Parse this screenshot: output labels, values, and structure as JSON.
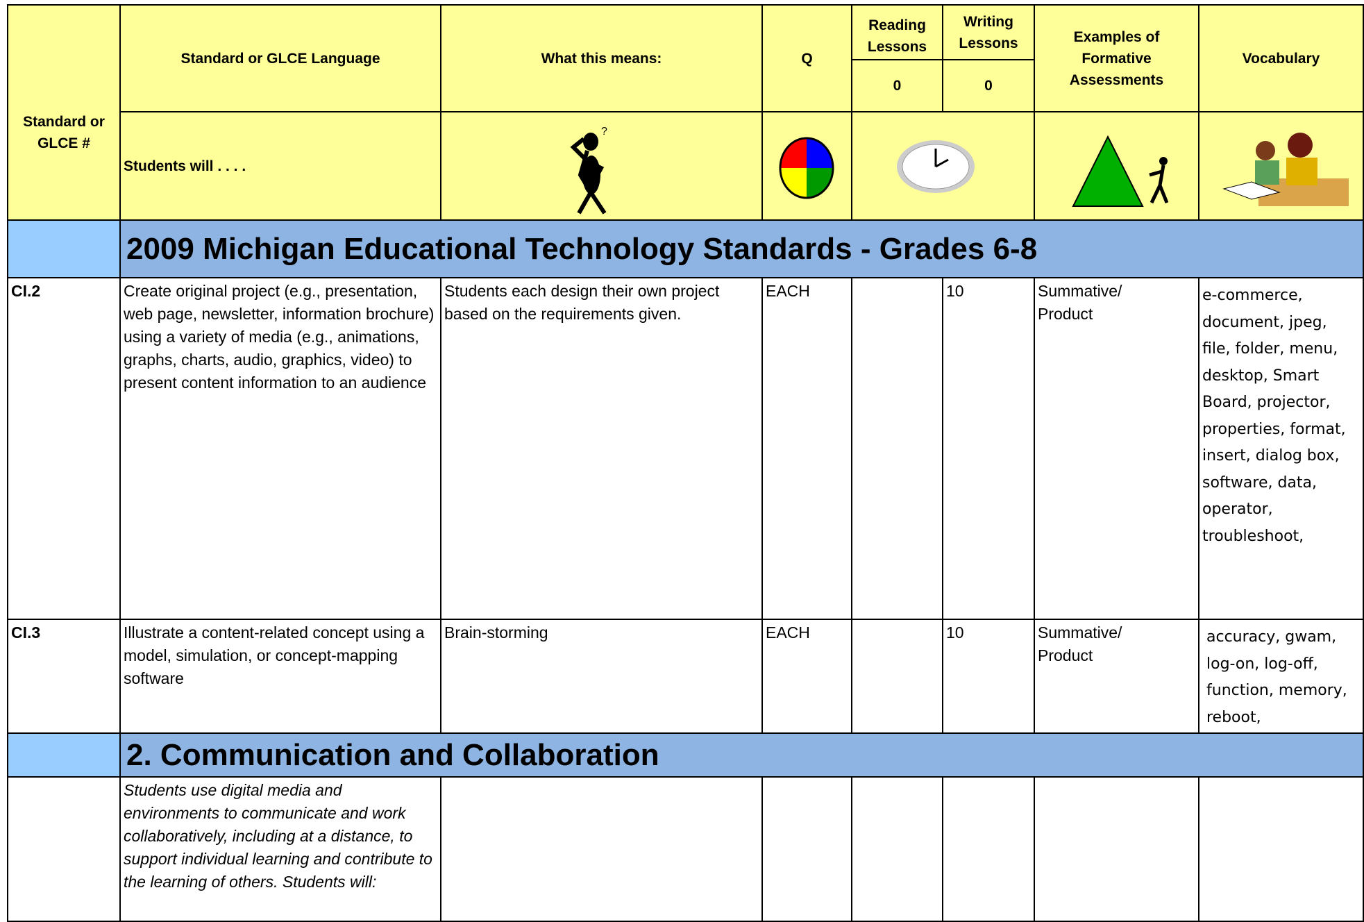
{
  "header": {
    "standard_no": "Standard or GLCE #",
    "standard_language": "Standard or GLCE Language",
    "students_will": "Students will . . . .",
    "what_this_means": "What this means:",
    "q": "Q",
    "reading_lessons": "Reading Lessons",
    "writing_lessons": "Writing Lessons",
    "reading_count": 0,
    "writing_count": 0,
    "formative": "Examples of Formative Assessments",
    "vocabulary": "Vocabulary"
  },
  "banner_1": "2009 Michigan Educational Technology Standards - Grades 6-8",
  "rows": [
    {
      "id": "CI.2",
      "language": "Create original project (e.g., presentation, web page, newsletter, information brochure) using a variety of media (e.g., animations, graphs, charts, audio, graphics, video) to present content information to an audience",
      "means": "Students each design their own project based on the requirements given.",
      "q": "EACH",
      "writing": 10,
      "assessment": "Summative/ Product",
      "vocabulary": "e-commerce, document, jpeg, file, folder, menu, desktop, Smart Board, projector, properties, format, insert, dialog box, software, data, operator, troubleshoot,"
    },
    {
      "id": "CI.3",
      "language": "Illustrate a content-related concept using a model, simulation, or concept-mapping software",
      "means": "Brain-storming",
      "q": "EACH",
      "writing": 10,
      "assessment": "Summative/ Product",
      "vocabulary": "accuracy, gwam, log-on, log-off, function, memory, reboot,"
    }
  ],
  "banner_2": "2. Communication and Collaboration",
  "intro": "Students use digital media and environments to communicate and work collaboratively, including at a distance, to support individual learning and contribute to the learning of others. Students will:"
}
